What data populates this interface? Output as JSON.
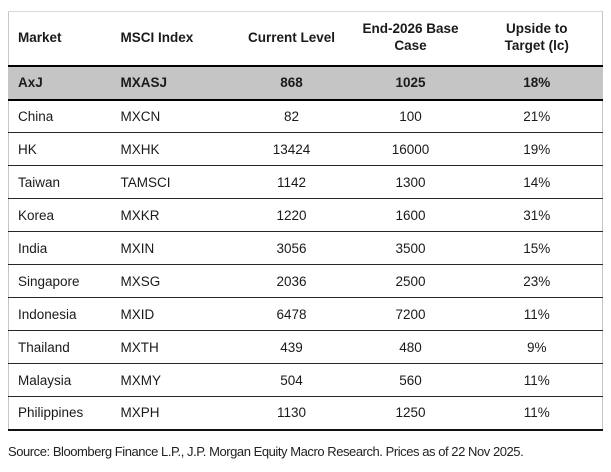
{
  "table": {
    "columns": [
      "Market",
      "MSCI Index",
      "Current Level",
      "End-2026 Base Case",
      "Upside to Target (lc)"
    ],
    "rows": [
      {
        "market": "AxJ",
        "index": "MXASJ",
        "current": "868",
        "base": "1025",
        "upside": "18%",
        "highlight": true
      },
      {
        "market": "China",
        "index": "MXCN",
        "current": "82",
        "base": "100",
        "upside": "21%",
        "highlight": false
      },
      {
        "market": "HK",
        "index": "MXHK",
        "current": "13424",
        "base": "16000",
        "upside": "19%",
        "highlight": false
      },
      {
        "market": "Taiwan",
        "index": "TAMSCI",
        "current": "1142",
        "base": "1300",
        "upside": "14%",
        "highlight": false
      },
      {
        "market": "Korea",
        "index": "MXKR",
        "current": "1220",
        "base": "1600",
        "upside": "31%",
        "highlight": false
      },
      {
        "market": "India",
        "index": "MXIN",
        "current": "3056",
        "base": "3500",
        "upside": "15%",
        "highlight": false
      },
      {
        "market": "Singapore",
        "index": "MXSG",
        "current": "2036",
        "base": "2500",
        "upside": "23%",
        "highlight": false
      },
      {
        "market": "Indonesia",
        "index": "MXID",
        "current": "6478",
        "base": "7200",
        "upside": "11%",
        "highlight": false
      },
      {
        "market": "Thailand",
        "index": "MXTH",
        "current": "439",
        "base": "480",
        "upside": "9%",
        "highlight": false
      },
      {
        "market": "Malaysia",
        "index": "MXMY",
        "current": "504",
        "base": "560",
        "upside": "11%",
        "highlight": false
      },
      {
        "market": "Philippines",
        "index": "MXPH",
        "current": "1130",
        "base": "1250",
        "upside": "11%",
        "highlight": false
      }
    ]
  },
  "footer": {
    "source": "Source: Bloomberg Finance L.P., J.P. Morgan Equity Macro Research. Prices as of 22 Nov 2025."
  },
  "colors": {
    "highlight_row_bg": "#c5c5c5",
    "heavy_border": "#000000",
    "row_divider": "#262626",
    "table_top_border": "#d9d9d9"
  }
}
